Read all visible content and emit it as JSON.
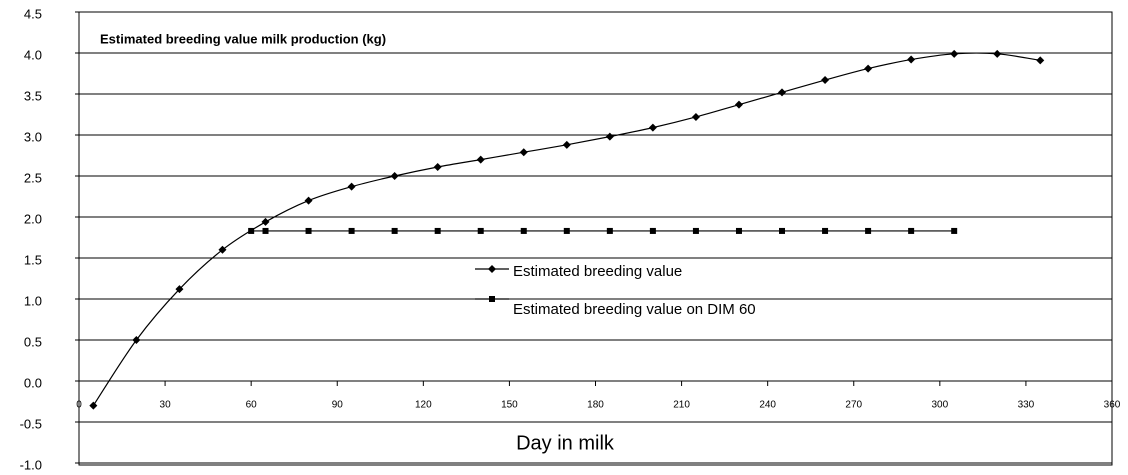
{
  "chart_data": {
    "type": "line",
    "title": "Estimated breeding value milk production (kg)",
    "x_label": "Day in milk",
    "legend_position": "center",
    "grid": true,
    "xlim": [
      0,
      360
    ],
    "xticks": [
      0,
      30,
      60,
      90,
      120,
      150,
      180,
      210,
      240,
      270,
      300,
      330,
      360
    ],
    "ylim": [
      -1.0,
      4.5
    ],
    "yticks": [
      {
        "value": 4.5,
        "label": "4.5"
      },
      {
        "value": 4,
        "label": "4.0"
      },
      {
        "value": 3.5,
        "label": "3.5"
      },
      {
        "value": 3,
        "label": "3.0"
      },
      {
        "value": 2.5,
        "label": "2.5"
      },
      {
        "value": 2,
        "label": "2.0"
      },
      {
        "value": 1.5,
        "label": "1.5"
      },
      {
        "value": 1,
        "label": "1.0"
      },
      {
        "value": 0.5,
        "label": "0.5"
      },
      {
        "value": 0,
        "label": "0.0"
      },
      {
        "value": -0.5,
        "label": "-0.5"
      },
      {
        "value": -1,
        "label": "-1.0"
      }
    ],
    "series": [
      {
        "name": "Estimated breeding value",
        "color": "#000000",
        "marker": "diamond",
        "smooth": true,
        "x": [
          5,
          20,
          35,
          50,
          65,
          80,
          95,
          110,
          125,
          140,
          155,
          170,
          185,
          200,
          215,
          230,
          245,
          260,
          275,
          290,
          305,
          320,
          335
        ],
        "values": [
          -0.3,
          0.5,
          1.12,
          1.6,
          1.94,
          2.2,
          2.37,
          2.5,
          2.61,
          2.7,
          2.79,
          2.88,
          2.98,
          3.09,
          3.22,
          3.37,
          3.52,
          3.67,
          3.81,
          3.92,
          3.99,
          3.99,
          3.91
        ]
      },
      {
        "name": "Estimated breeding value on DIM 60",
        "color": "#000000",
        "marker": "square",
        "smooth": false,
        "x": [
          60,
          65,
          80,
          95,
          110,
          125,
          140,
          155,
          170,
          185,
          200,
          215,
          230,
          245,
          260,
          275,
          290,
          305
        ],
        "values": [
          1.83,
          1.83,
          1.83,
          1.83,
          1.83,
          1.83,
          1.83,
          1.83,
          1.83,
          1.83,
          1.83,
          1.83,
          1.83,
          1.83,
          1.83,
          1.83,
          1.83,
          1.83
        ]
      }
    ]
  }
}
